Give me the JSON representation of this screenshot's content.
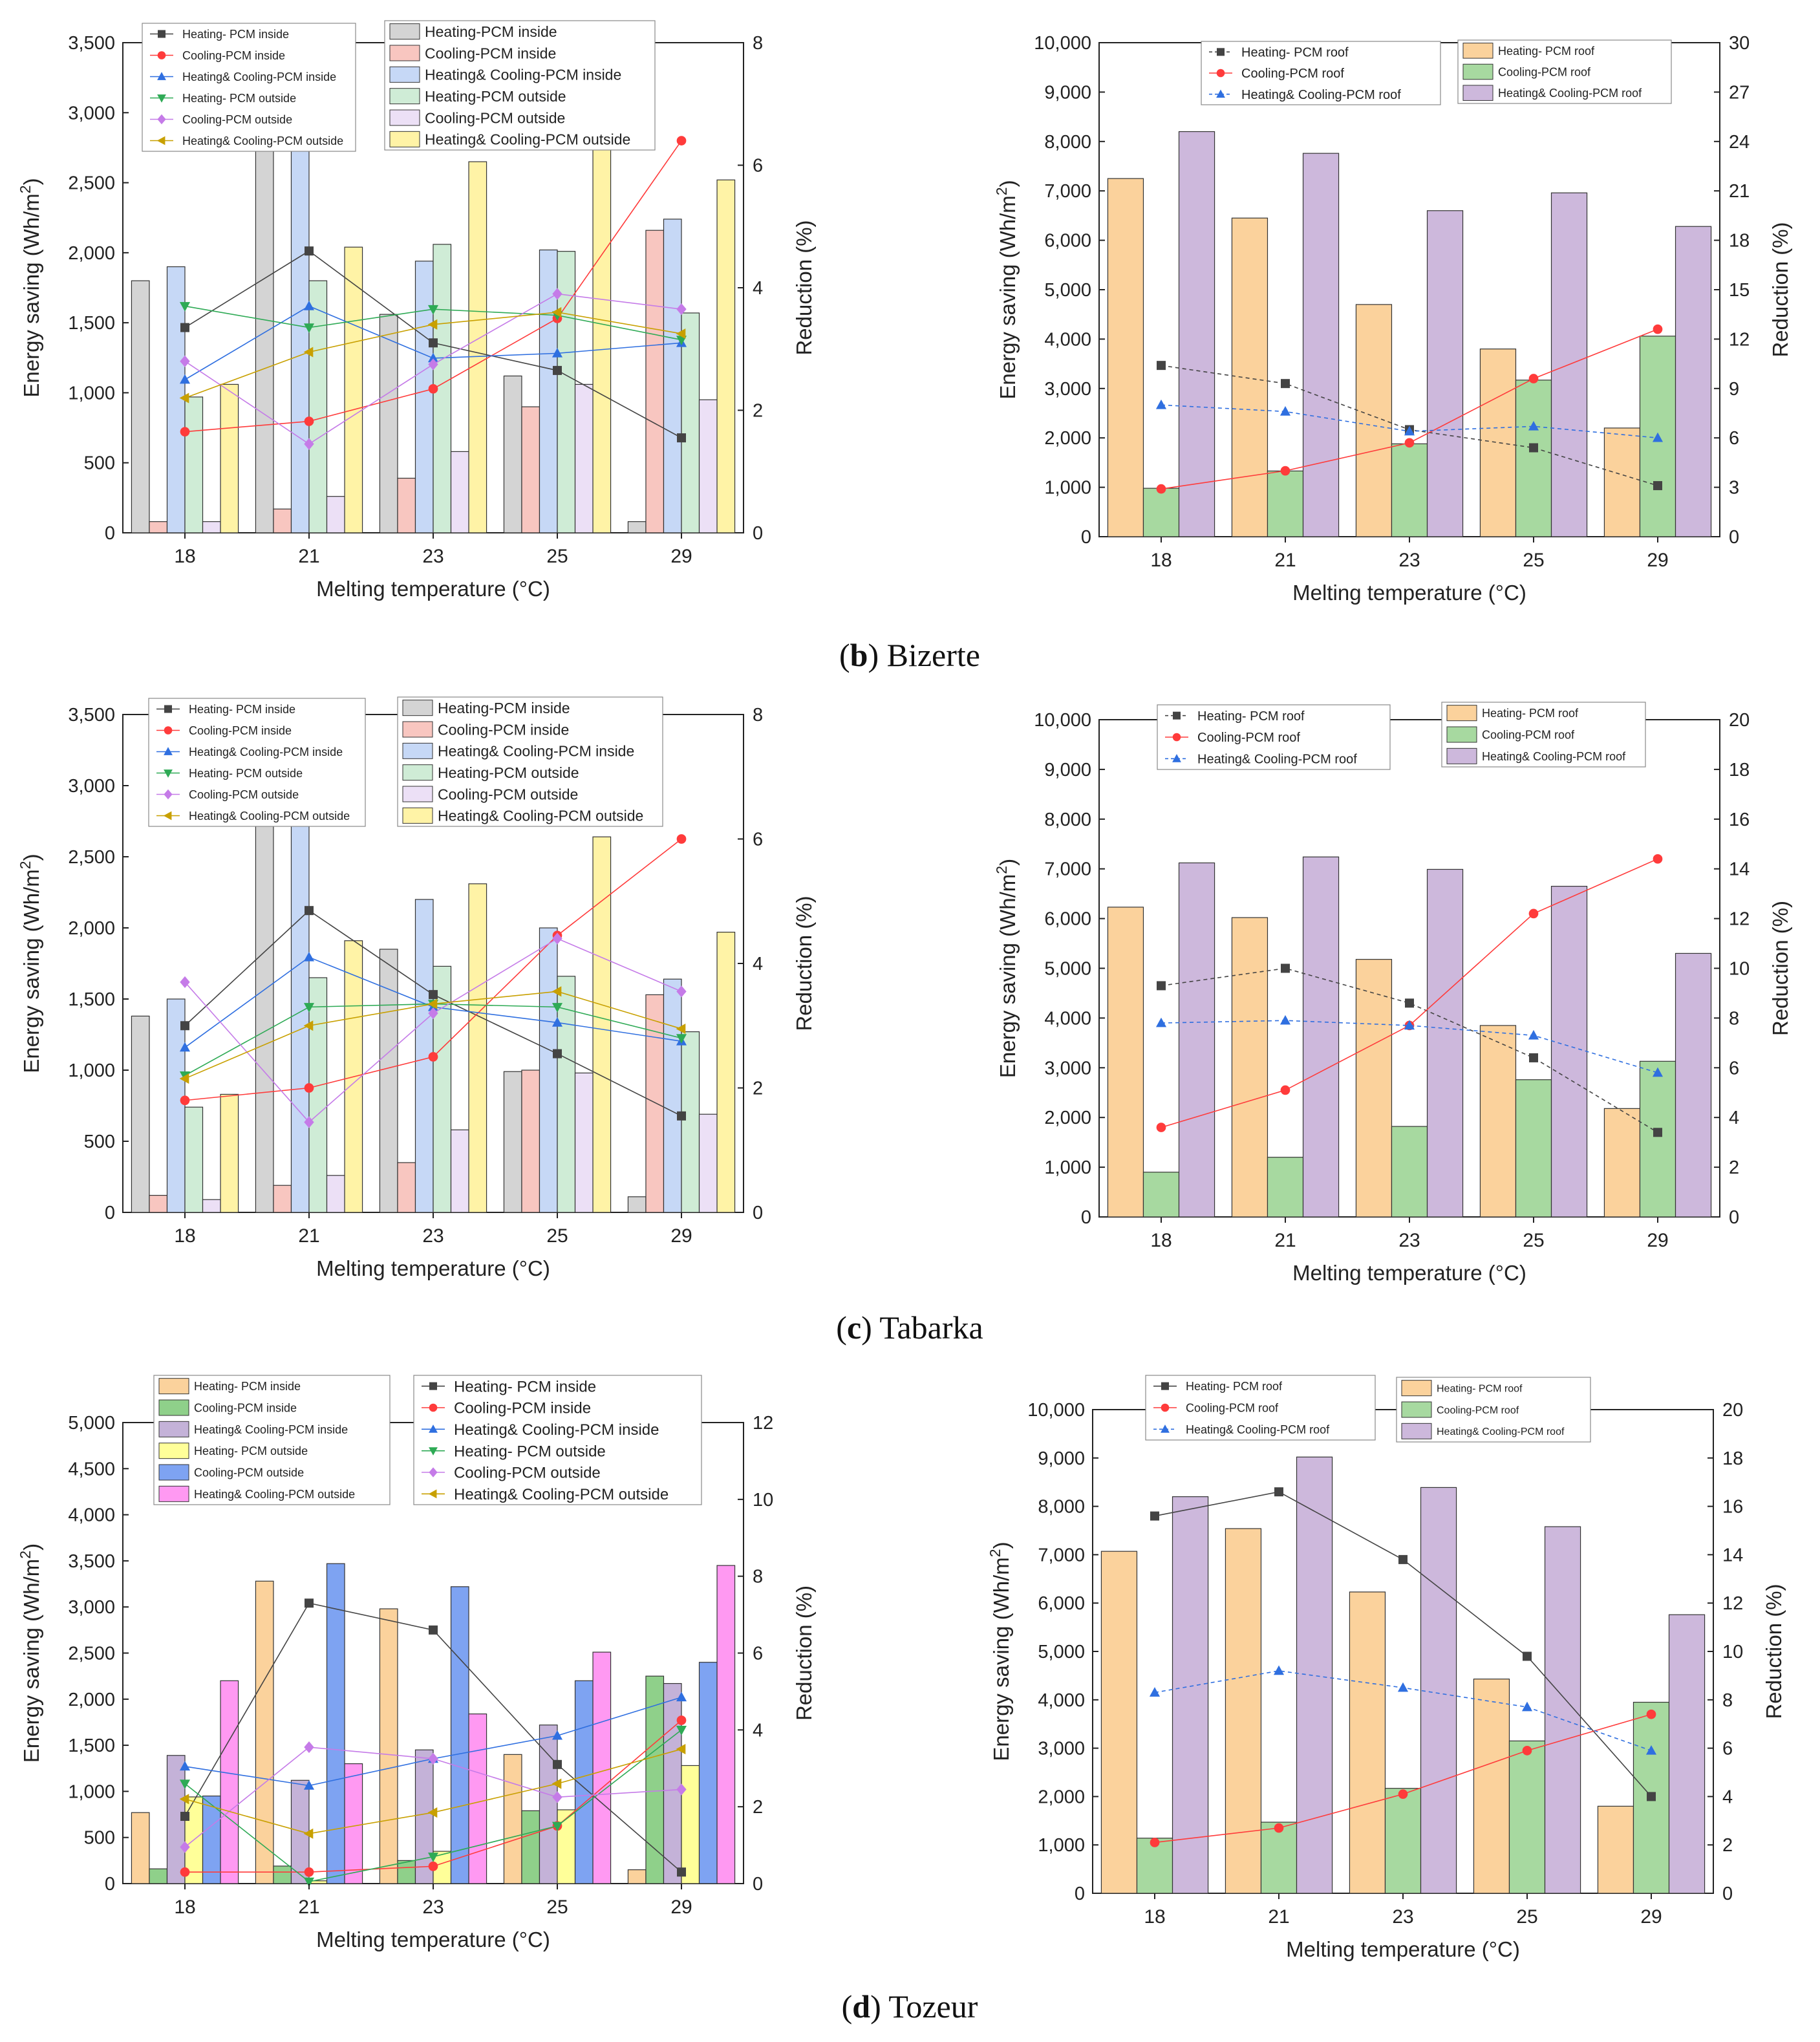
{
  "captions": [
    {
      "letter": "b",
      "city": "Bizerte"
    },
    {
      "letter": "c",
      "city": "Tabarka"
    },
    {
      "letter": "d",
      "city": "Tozeur"
    }
  ],
  "colors": {
    "heating_inside_bar": "#d4d4d4",
    "cooling_inside_bar": "#f8c6c0",
    "both_inside_bar": "#c6d8f6",
    "heating_outside_bar": "#cfecd6",
    "cooling_outside_bar": "#ece0f6",
    "both_outside_bar": "#fff3a6",
    "heating_roof_bar": "#fbd29c",
    "cooling_roof_bar": "#a7d9a0",
    "both_roof_bar": "#cdb8dc",
    "tz_heating_inside": "#fbd29c",
    "tz_cooling_inside": "#8fd08a",
    "tz_both_inside": "#c4b2d8",
    "tz_heating_outside": "#ffff99",
    "tz_cooling_outside": "#7ea3f2",
    "tz_both_outside": "#ff99f2",
    "line_heating": "#444444",
    "line_cooling": "#ff3b3b",
    "line_both": "#2f6fe0",
    "line_heating_out": "#2eaa55",
    "line_cooling_out": "#c57be8",
    "line_both_out": "#c8a000"
  },
  "chart_data": [
    {
      "id": "bizerte_walls",
      "type": "bar",
      "bar_legend_first": false,
      "categories": [
        "18",
        "21",
        "23",
        "25",
        "29"
      ],
      "xlabel": "Melting temperature (°C)",
      "ylabel": "Energy saving (Wh/m²)",
      "y2label": "Reduction (%)",
      "ylim": [
        0,
        3500
      ],
      "y_ticks": [
        "0",
        "500",
        "1,000",
        "1,500",
        "2,000",
        "2,500",
        "3,000",
        "3,500"
      ],
      "y2lim": [
        0,
        8
      ],
      "y2_ticks": [
        "0",
        "2",
        "4",
        "6",
        "8"
      ],
      "bar_series": [
        {
          "name": "Heating-PCM inside",
          "color_key": "heating_inside_bar",
          "values": [
            1800,
            2940,
            1560,
            1120,
            80
          ]
        },
        {
          "name": "Cooling-PCM inside",
          "color_key": "cooling_inside_bar",
          "values": [
            80,
            170,
            390,
            900,
            2160
          ]
        },
        {
          "name": "Heating& Cooling-PCM inside",
          "color_key": "both_inside_bar",
          "values": [
            1900,
            3100,
            1940,
            2020,
            2240
          ]
        },
        {
          "name": "Heating-PCM outside",
          "color_key": "heating_outside_bar",
          "values": [
            970,
            1800,
            2060,
            2010,
            1570
          ]
        },
        {
          "name": "Cooling-PCM outside",
          "color_key": "cooling_outside_bar",
          "values": [
            80,
            260,
            580,
            1060,
            950
          ]
        },
        {
          "name": "Heating& Cooling-PCM outside",
          "color_key": "both_outside_bar",
          "values": [
            1060,
            2040,
            2650,
            3070,
            2520
          ]
        }
      ],
      "line_series": [
        {
          "name": "Heating- PCM inside",
          "color_key": "line_heating",
          "marker": "square",
          "dashed": false,
          "values": [
            3.35,
            4.6,
            3.1,
            2.65,
            1.55
          ]
        },
        {
          "name": "Cooling-PCM inside",
          "color_key": "line_cooling",
          "marker": "circle",
          "dashed": false,
          "values": [
            1.65,
            1.82,
            2.35,
            3.5,
            6.4
          ]
        },
        {
          "name": "Heating& Cooling-PCM inside",
          "color_key": "line_both",
          "marker": "triangle-up",
          "dashed": false,
          "values": [
            2.5,
            3.7,
            2.85,
            2.93,
            3.1
          ]
        },
        {
          "name": "Heating- PCM outside",
          "color_key": "line_heating_out",
          "marker": "triangle-down",
          "dashed": false,
          "values": [
            3.7,
            3.35,
            3.65,
            3.55,
            3.15
          ]
        },
        {
          "name": "Cooling-PCM outside",
          "color_key": "line_cooling_out",
          "marker": "diamond",
          "dashed": false,
          "values": [
            2.8,
            1.45,
            2.75,
            3.9,
            3.65
          ]
        },
        {
          "name": "Heating& Cooling-PCM outside",
          "color_key": "line_both_out",
          "marker": "triangle-left",
          "dashed": false,
          "values": [
            2.2,
            2.95,
            3.4,
            3.6,
            3.25
          ]
        }
      ]
    },
    {
      "id": "bizerte_roof",
      "type": "bar",
      "bar_legend_first": false,
      "categories": [
        "18",
        "21",
        "23",
        "25",
        "29"
      ],
      "xlabel": "Melting temperature (°C)",
      "ylabel": "Energy saving (Wh/m²)",
      "y2label": "Reduction (%)",
      "ylim": [
        0,
        10000
      ],
      "y_ticks": [
        "0",
        "1,000",
        "2,000",
        "3,000",
        "4,000",
        "5,000",
        "6,000",
        "7,000",
        "8,000",
        "9,000",
        "10,000"
      ],
      "y2lim": [
        0,
        30
      ],
      "y2_ticks": [
        "0",
        "3",
        "6",
        "9",
        "12",
        "15",
        "18",
        "21",
        "24",
        "27",
        "30"
      ],
      "bar_series": [
        {
          "name": "Heating- PCM roof",
          "color_key": "heating_roof_bar",
          "values": [
            7250,
            6450,
            4700,
            3800,
            2200
          ]
        },
        {
          "name": "Cooling-PCM roof",
          "color_key": "cooling_roof_bar",
          "values": [
            980,
            1330,
            1880,
            3170,
            4060
          ]
        },
        {
          "name": "Heating& Cooling-PCM roof",
          "color_key": "both_roof_bar",
          "values": [
            8200,
            7760,
            6600,
            6960,
            6280
          ]
        }
      ],
      "line_series": [
        {
          "name": "Heating- PCM roof",
          "color_key": "line_heating",
          "marker": "square",
          "dashed": true,
          "values": [
            10.4,
            9.3,
            6.5,
            5.4,
            3.1
          ]
        },
        {
          "name": "Cooling-PCM roof",
          "color_key": "line_cooling",
          "marker": "circle",
          "dashed": false,
          "values": [
            2.9,
            4.0,
            5.7,
            9.6,
            12.6
          ]
        },
        {
          "name": "Heating& Cooling-PCM roof",
          "color_key": "line_both",
          "marker": "triangle-up",
          "dashed": true,
          "values": [
            8.0,
            7.6,
            6.4,
            6.7,
            6.0
          ]
        }
      ]
    },
    {
      "id": "tabarka_walls",
      "type": "bar",
      "bar_legend_first": false,
      "categories": [
        "18",
        "21",
        "23",
        "25",
        "29"
      ],
      "xlabel": "Melting temperature (°C)",
      "ylabel": "Energy saving (Wh/m²)",
      "y2label": "Reduction (%)",
      "ylim": [
        0,
        3500
      ],
      "y_ticks": [
        "0",
        "500",
        "1,000",
        "1,500",
        "2,000",
        "2,500",
        "3,000",
        "3,500"
      ],
      "y2lim": [
        0,
        8
      ],
      "y2_ticks": [
        "0",
        "2",
        "4",
        "6",
        "8"
      ],
      "bar_series": [
        {
          "name": "Heating-PCM inside",
          "color_key": "heating_inside_bar",
          "values": [
            1380,
            3060,
            1850,
            990,
            110
          ]
        },
        {
          "name": "Cooling-PCM inside",
          "color_key": "cooling_inside_bar",
          "values": [
            120,
            190,
            350,
            1000,
            1530
          ]
        },
        {
          "name": "Heating& Cooling-PCM inside",
          "color_key": "both_inside_bar",
          "values": [
            1500,
            3250,
            2200,
            2000,
            1640
          ]
        },
        {
          "name": "Heating-PCM outside",
          "color_key": "heating_outside_bar",
          "values": [
            740,
            1650,
            1730,
            1660,
            1270
          ]
        },
        {
          "name": "Cooling-PCM outside",
          "color_key": "cooling_outside_bar",
          "values": [
            90,
            260,
            580,
            980,
            690
          ]
        },
        {
          "name": "Heating& Cooling-PCM outside",
          "color_key": "both_outside_bar",
          "values": [
            830,
            1910,
            2310,
            2640,
            1970
          ]
        }
      ],
      "line_series": [
        {
          "name": "Heating- PCM inside",
          "color_key": "line_heating",
          "marker": "square",
          "dashed": false,
          "values": [
            3.0,
            4.85,
            3.5,
            2.55,
            1.55
          ]
        },
        {
          "name": "Cooling-PCM inside",
          "color_key": "line_cooling",
          "marker": "circle",
          "dashed": false,
          "values": [
            1.8,
            2.0,
            2.5,
            4.45,
            6.0
          ]
        },
        {
          "name": "Heating& Cooling-PCM inside",
          "color_key": "line_both",
          "marker": "triangle-up",
          "dashed": false,
          "values": [
            2.65,
            4.1,
            3.3,
            3.05,
            2.75
          ]
        },
        {
          "name": "Heating- PCM outside",
          "color_key": "line_heating_out",
          "marker": "triangle-down",
          "dashed": false,
          "values": [
            2.2,
            3.3,
            3.35,
            3.3,
            2.8
          ]
        },
        {
          "name": "Cooling-PCM outside",
          "color_key": "line_cooling_out",
          "marker": "diamond",
          "dashed": false,
          "values": [
            3.7,
            1.45,
            3.2,
            4.4,
            3.55
          ]
        },
        {
          "name": "Heating& Cooling-PCM outside",
          "color_key": "line_both_out",
          "marker": "triangle-left",
          "dashed": false,
          "values": [
            2.15,
            3.0,
            3.35,
            3.55,
            2.95
          ]
        }
      ]
    },
    {
      "id": "tabarka_roof",
      "type": "bar",
      "bar_legend_first": false,
      "categories": [
        "18",
        "21",
        "23",
        "25",
        "29"
      ],
      "xlabel": "Melting temperature (°C)",
      "ylabel": "Energy saving (Wh/m²)",
      "y2label": "Reduction (%)",
      "ylim": [
        0,
        10000
      ],
      "y_ticks": [
        "0",
        "1,000",
        "2,000",
        "3,000",
        "4,000",
        "5,000",
        "6,000",
        "7,000",
        "8,000",
        "9,000",
        "10,000"
      ],
      "y2lim": [
        0,
        20
      ],
      "y2_ticks": [
        "0",
        "2",
        "4",
        "6",
        "8",
        "10",
        "12",
        "14",
        "16",
        "18",
        "20"
      ],
      "bar_series": [
        {
          "name": "Heating- PCM roof",
          "color_key": "heating_roof_bar",
          "values": [
            6230,
            6020,
            5180,
            3850,
            2180
          ]
        },
        {
          "name": "Cooling-PCM roof",
          "color_key": "cooling_roof_bar",
          "values": [
            900,
            1200,
            1820,
            2760,
            3130
          ]
        },
        {
          "name": "Heating& Cooling-PCM roof",
          "color_key": "both_roof_bar",
          "values": [
            7120,
            7240,
            6990,
            6650,
            5300
          ]
        }
      ],
      "line_series": [
        {
          "name": "Heating- PCM roof",
          "color_key": "line_heating",
          "marker": "square",
          "dashed": true,
          "values": [
            9.3,
            10.0,
            8.6,
            6.4,
            3.4
          ]
        },
        {
          "name": "Cooling-PCM roof",
          "color_key": "line_cooling",
          "marker": "circle",
          "dashed": false,
          "values": [
            3.6,
            5.1,
            7.7,
            12.2,
            14.4
          ]
        },
        {
          "name": "Heating& Cooling-PCM roof",
          "color_key": "line_both",
          "marker": "triangle-up",
          "dashed": true,
          "values": [
            7.8,
            7.9,
            7.7,
            7.3,
            5.8
          ]
        }
      ]
    },
    {
      "id": "tozeur_walls",
      "type": "bar",
      "bar_legend_first": true,
      "categories": [
        "18",
        "21",
        "23",
        "25",
        "29"
      ],
      "xlabel": "Melting temperature (°C)",
      "ylabel": "Energy saving (Wh/m²)",
      "y2label": "Reduction (%)",
      "ylim": [
        0,
        5000
      ],
      "y_ticks": [
        "0",
        "500",
        "1,000",
        "1,500",
        "2,000",
        "2,500",
        "3,000",
        "3,500",
        "4,000",
        "4,500",
        "5,000"
      ],
      "y2lim": [
        0,
        12
      ],
      "y2_ticks": [
        "0",
        "2",
        "4",
        "6",
        "8",
        "10",
        "12"
      ],
      "bar_series": [
        {
          "name": "Heating- PCM inside",
          "color_key": "tz_heating_inside",
          "values": [
            770,
            3280,
            2980,
            1400,
            150
          ]
        },
        {
          "name": "Cooling-PCM inside",
          "color_key": "tz_cooling_inside",
          "values": [
            160,
            190,
            250,
            790,
            2250
          ]
        },
        {
          "name": "Heating& Cooling-PCM inside",
          "color_key": "tz_both_inside",
          "values": [
            1390,
            1120,
            1450,
            1720,
            2170
          ]
        },
        {
          "name": "Heating- PCM outside",
          "color_key": "tz_heating_outside",
          "values": [
            940,
            30,
            350,
            800,
            1280
          ]
        },
        {
          "name": "Cooling-PCM outside",
          "color_key": "tz_cooling_outside",
          "values": [
            950,
            3470,
            3220,
            2200,
            2400
          ]
        },
        {
          "name": "Heating& Cooling-PCM outside",
          "color_key": "tz_both_outside",
          "values": [
            2200,
            1300,
            1840,
            2510,
            3450
          ]
        }
      ],
      "line_series": [
        {
          "name": "Heating- PCM inside",
          "color_key": "line_heating",
          "marker": "square",
          "dashed": false,
          "values": [
            1.75,
            7.3,
            6.6,
            3.1,
            0.3
          ]
        },
        {
          "name": "Cooling-PCM inside",
          "color_key": "line_cooling",
          "marker": "circle",
          "dashed": false,
          "values": [
            0.3,
            0.3,
            0.45,
            1.5,
            4.25
          ]
        },
        {
          "name": "Heating& Cooling-PCM inside",
          "color_key": "line_both",
          "marker": "triangle-up",
          "dashed": false,
          "values": [
            3.05,
            2.55,
            3.25,
            3.85,
            4.85
          ]
        },
        {
          "name": "Heating- PCM outside",
          "color_key": "line_heating_out",
          "marker": "triangle-down",
          "dashed": false,
          "values": [
            2.6,
            0.05,
            0.7,
            1.5,
            4.0
          ]
        },
        {
          "name": "Cooling-PCM outside",
          "color_key": "line_cooling_out",
          "marker": "diamond",
          "dashed": false,
          "values": [
            0.95,
            3.55,
            3.25,
            2.25,
            2.45
          ]
        },
        {
          "name": "Heating& Cooling-PCM outside",
          "color_key": "line_both_out",
          "marker": "triangle-left",
          "dashed": false,
          "values": [
            2.2,
            1.3,
            1.85,
            2.6,
            3.5
          ]
        }
      ]
    },
    {
      "id": "tozeur_roof",
      "type": "bar",
      "bar_legend_first": false,
      "categories": [
        "18",
        "21",
        "23",
        "25",
        "29"
      ],
      "xlabel": "Melting temperature (°C)",
      "ylabel": "Energy saving (Wh/m²)",
      "y2label": "Reduction (%)",
      "ylim": [
        0,
        10000
      ],
      "y_ticks": [
        "0",
        "1,000",
        "2,000",
        "3,000",
        "4,000",
        "5,000",
        "6,000",
        "7,000",
        "8,000",
        "9,000",
        "10,000"
      ],
      "y2lim": [
        0,
        20
      ],
      "y2_ticks": [
        "0",
        "2",
        "4",
        "6",
        "8",
        "10",
        "12",
        "14",
        "16",
        "18",
        "20"
      ],
      "bar_series": [
        {
          "name": "Heating- PCM roof",
          "color_key": "heating_roof_bar",
          "values": [
            7070,
            7540,
            6230,
            4430,
            1800
          ]
        },
        {
          "name": "Cooling-PCM roof",
          "color_key": "cooling_roof_bar",
          "values": [
            1140,
            1470,
            2170,
            3150,
            3950
          ]
        },
        {
          "name": "Heating& Cooling-PCM roof",
          "color_key": "both_roof_bar",
          "values": [
            8200,
            9020,
            8390,
            7580,
            5760
          ]
        }
      ],
      "line_series": [
        {
          "name": "Heating- PCM roof",
          "color_key": "line_heating",
          "marker": "square",
          "dashed": false,
          "values": [
            15.6,
            16.6,
            13.8,
            9.8,
            4.0
          ]
        },
        {
          "name": "Cooling-PCM roof",
          "color_key": "line_cooling",
          "marker": "circle",
          "dashed": false,
          "values": [
            2.1,
            2.7,
            4.1,
            5.9,
            7.4
          ]
        },
        {
          "name": "Heating& Cooling-PCM roof",
          "color_key": "line_both",
          "marker": "triangle-up",
          "dashed": true,
          "values": [
            8.3,
            9.2,
            8.5,
            7.7,
            5.9
          ]
        }
      ]
    }
  ]
}
